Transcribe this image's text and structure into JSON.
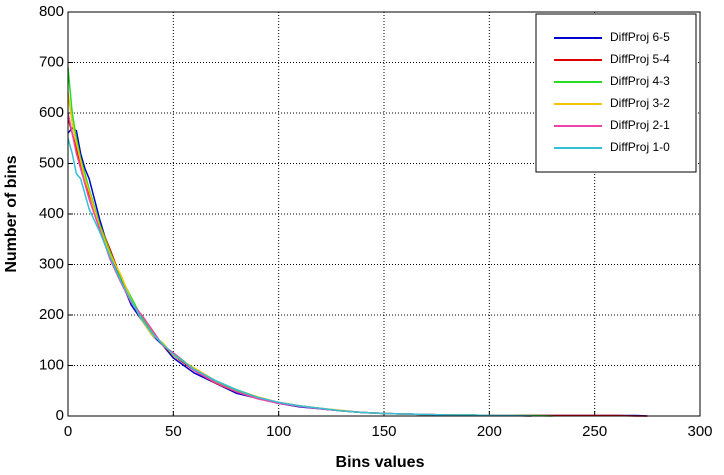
{
  "chart_data": {
    "type": "line",
    "xlabel": "Bins values",
    "ylabel": "Number of bins",
    "x": [
      0,
      2,
      4,
      6,
      8,
      10,
      15,
      20,
      25,
      30,
      35,
      40,
      45,
      50,
      60,
      70,
      80,
      90,
      100,
      110,
      120,
      130,
      140,
      150,
      160,
      170,
      180,
      190,
      200,
      210,
      220,
      230,
      240,
      250,
      260,
      270,
      275
    ],
    "series": [
      {
        "name": "DiffProj 6-5",
        "color": "#0000cc",
        "values": [
          560,
          570,
          565,
          520,
          490,
          470,
          390,
          320,
          270,
          220,
          190,
          160,
          140,
          115,
          85,
          65,
          45,
          35,
          25,
          18,
          14,
          10,
          7,
          5,
          4,
          3,
          2,
          2,
          1,
          1,
          1,
          1,
          1,
          1,
          1,
          1,
          0
        ]
      },
      {
        "name": "DiffProj 5-4",
        "color": "#e00000",
        "values": [
          590,
          560,
          530,
          500,
          470,
          440,
          380,
          330,
          275,
          230,
          195,
          165,
          140,
          120,
          90,
          65,
          48,
          35,
          27,
          20,
          15,
          10,
          7,
          5,
          4,
          3,
          2,
          2,
          1,
          1,
          1,
          1,
          1,
          1,
          1,
          0,
          0
        ]
      },
      {
        "name": "DiffProj 4-3",
        "color": "#22dd22",
        "values": [
          690,
          600,
          550,
          510,
          480,
          450,
          380,
          325,
          275,
          235,
          195,
          165,
          140,
          125,
          92,
          68,
          50,
          36,
          26,
          20,
          15,
          10,
          7,
          5,
          4,
          3,
          2,
          2,
          1,
          1,
          1,
          0,
          null,
          null,
          null,
          null,
          null
        ]
      },
      {
        "name": "DiffProj 3-2",
        "color": "#f5c400",
        "values": [
          640,
          580,
          540,
          505,
          470,
          445,
          375,
          320,
          280,
          230,
          190,
          160,
          145,
          120,
          95,
          70,
          52,
          38,
          27,
          20,
          15,
          11,
          7,
          5,
          4,
          3,
          2,
          2,
          1,
          1,
          0,
          null,
          null,
          null,
          null,
          null,
          null
        ]
      },
      {
        "name": "DiffProj 2-1",
        "color": "#ee44aa",
        "values": [
          600,
          560,
          520,
          490,
          460,
          430,
          370,
          310,
          265,
          225,
          200,
          170,
          140,
          125,
          90,
          66,
          48,
          34,
          25,
          19,
          14,
          10,
          7,
          5,
          4,
          3,
          2,
          1,
          1,
          1,
          0,
          null,
          null,
          null,
          null,
          null,
          null
        ]
      },
      {
        "name": "DiffProj 1-0",
        "color": "#33c0d8",
        "values": [
          550,
          520,
          480,
          470,
          440,
          410,
          365,
          315,
          268,
          228,
          192,
          163,
          142,
          122,
          92,
          70,
          52,
          37,
          27,
          20,
          15,
          10,
          7,
          5,
          4,
          3,
          2,
          2,
          1,
          1,
          0,
          null,
          null,
          null,
          null,
          null,
          null
        ]
      }
    ],
    "xlim": [
      0,
      300
    ],
    "xticks": [
      0,
      50,
      100,
      150,
      200,
      250,
      300
    ],
    "ylim": [
      0,
      800
    ],
    "yticks": [
      0,
      100,
      200,
      300,
      400,
      500,
      600,
      700,
      800
    ],
    "grid": true,
    "legend": "upper right"
  }
}
